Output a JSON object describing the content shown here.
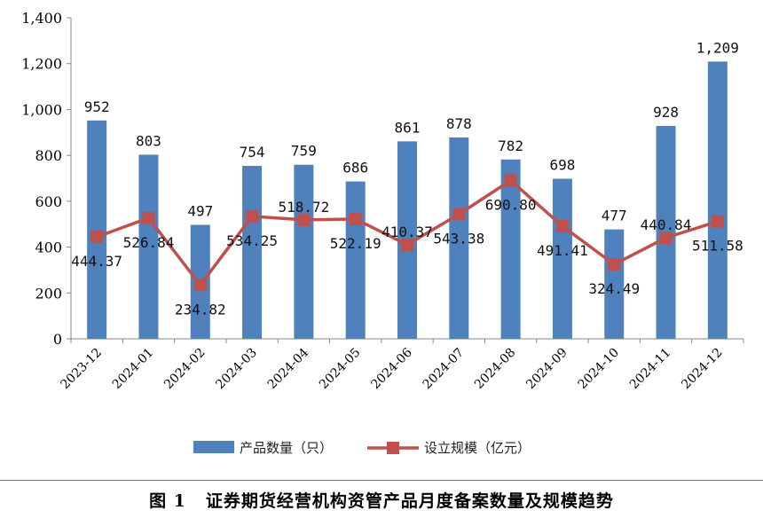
{
  "caption": {
    "number": "图 1",
    "text": "证券期货经营机构资管产品月度备案数量及规模趋势"
  },
  "chart_data": {
    "type": "bar+line",
    "categories": [
      "2023-12",
      "2024-01",
      "2024-02",
      "2024-03",
      "2024-04",
      "2024-05",
      "2024-06",
      "2024-07",
      "2024-08",
      "2024-09",
      "2024-10",
      "2024-11",
      "2024-12"
    ],
    "ylim": [
      0,
      1400
    ],
    "yticks": [
      0,
      200,
      400,
      600,
      800,
      1000,
      1200,
      1400
    ],
    "ytick_labels": [
      "0",
      "200",
      "400",
      "600",
      "800",
      "1,000",
      "1,200",
      "1,400"
    ],
    "grid": false,
    "legend_position": "bottom",
    "series": [
      {
        "name": "产品数量（只）",
        "kind": "bar",
        "color": "#4F81BD",
        "values": [
          952,
          803,
          497,
          754,
          759,
          686,
          861,
          878,
          782,
          698,
          477,
          928,
          1209
        ],
        "labels": [
          "952",
          "803",
          "497",
          "754",
          "759",
          "686",
          "861",
          "878",
          "782",
          "698",
          "477",
          "928",
          "1,209"
        ]
      },
      {
        "name": "设立规模（亿元）",
        "kind": "line",
        "color": "#C0504D",
        "values": [
          444.37,
          526.84,
          234.82,
          534.25,
          518.72,
          522.19,
          410.37,
          543.38,
          690.8,
          491.41,
          324.49,
          440.84,
          511.58
        ],
        "labels": [
          "444.37",
          "526.84",
          "234.82",
          "534.25",
          "518.72",
          "522.19",
          "410.37",
          "543.38",
          "690.80",
          "491.41",
          "324.49",
          "440.84",
          "511.58"
        ]
      }
    ]
  }
}
